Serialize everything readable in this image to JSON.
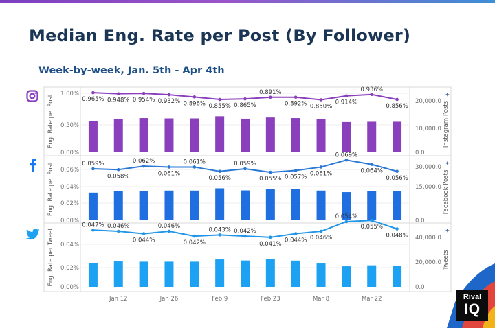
{
  "title": "Median Eng. Rate per Post (By Follower)",
  "subtitle": "Week-by-week, Jan. 5th - Apr 4th",
  "logo": {
    "line1": "Rival",
    "line2": "IQ"
  },
  "icons": {
    "instagram": "instagram-icon",
    "facebook": "facebook-icon",
    "twitter": "twitter-icon"
  },
  "colors": {
    "instagram_bar": "#8a3fbc",
    "instagram_line": "#8a3fbc",
    "facebook_bar": "#1f6fe0",
    "facebook_line": "#2a78d6",
    "twitter_bar": "#1da1f2",
    "twitter_line": "#2196e8",
    "facebook_icon": "#1877f2",
    "twitter_icon": "#1da1f2",
    "instagram_icon": "#8a3fbc",
    "title": "#1b3554",
    "subtitle": "#1d4f86"
  },
  "chart_data": {
    "type": "bar",
    "x_tick_labels": [
      "Jan 12",
      "Jan 26",
      "Feb 9",
      "Feb 23",
      "Mar 8",
      "Mar 22"
    ],
    "grid": true,
    "panels": [
      {
        "platform": "Instagram",
        "ylabel": "Eng. Rate per Post",
        "y2label": "Instagram Posts",
        "y_ticks": [
          "0.00%",
          "0.50%",
          "1.00%"
        ],
        "y2_ticks": [
          "0.0",
          "10,000.0",
          "20,000.0"
        ],
        "ylim": [
          0,
          1.0
        ],
        "y2lim": [
          0,
          20000
        ],
        "posts": [
          10200,
          10700,
          11100,
          11000,
          11000,
          11700,
          10900,
          11300,
          11100,
          10700,
          9800,
          9900,
          9900
        ],
        "rate": [
          0.965,
          0.948,
          0.954,
          0.932,
          0.896,
          0.855,
          0.865,
          0.891,
          0.892,
          0.85,
          0.914,
          0.936,
          0.856
        ],
        "labels": [
          "0.965%",
          "0.948%",
          "0.954%",
          "0.932%",
          "0.896%",
          "0.855%",
          "0.865%",
          "0.891%",
          "0.892%",
          "0.850%",
          "0.914%",
          "0.936%",
          "0.856%"
        ],
        "label_above": [
          false,
          false,
          false,
          false,
          false,
          false,
          false,
          true,
          false,
          false,
          false,
          true,
          false
        ]
      },
      {
        "platform": "Facebook",
        "ylabel": "Eng. Rate per Post",
        "y2label": "Facebook Posts",
        "y_ticks": [
          "0.00%",
          "0.02%",
          "0.04%",
          "0.06%"
        ],
        "y2_ticks": [
          "0.00",
          "15000.0",
          "30,000.0"
        ],
        "y2_ticks_all": [
          "0.0",
          "15,000.0",
          "30,000.0"
        ],
        "y2_tick_mid": "15,000.0",
        "y2_tick_top": "30,000.0",
        "y2_tick_bottom": "0.0",
        "y_tick_extra": "0.02%",
        "ylim": [
          0,
          0.07
        ],
        "y2lim": [
          0,
          35000
        ],
        "posts": [
          15800,
          16800,
          16700,
          17000,
          17000,
          18300,
          17100,
          18000,
          18000,
          17000,
          16100,
          16600,
          16900
        ],
        "rate": [
          0.059,
          0.058,
          0.062,
          0.061,
          0.061,
          0.056,
          0.059,
          0.055,
          0.057,
          0.061,
          0.069,
          0.064,
          0.056
        ],
        "labels": [
          "0.059%",
          "0.058%",
          "0.062%",
          "0.061%",
          "0.061%",
          "0.056%",
          "0.059%",
          "0.055%",
          "0.057%",
          "0.061%",
          "0.069%",
          "0.064%",
          "0.056%"
        ],
        "label_above": [
          true,
          false,
          true,
          false,
          true,
          false,
          true,
          false,
          false,
          false,
          true,
          false,
          false
        ]
      },
      {
        "platform": "Twitter",
        "ylabel": "Eng. Rate per Tweet",
        "y2label": "Tweets",
        "y_ticks": [
          "0.00%",
          "0.02%",
          "0.04%"
        ],
        "y2_ticks": [
          "0.0",
          "20,000.0",
          "40,000.0"
        ],
        "ylim": [
          0,
          0.05
        ],
        "y2lim": [
          0,
          50000
        ],
        "posts": [
          19500,
          21000,
          20800,
          20800,
          20800,
          22700,
          21800,
          22900,
          21700,
          19300,
          17000,
          17800,
          17600
        ],
        "rate": [
          0.047,
          0.046,
          0.044,
          0.046,
          0.042,
          0.043,
          0.042,
          0.041,
          0.044,
          0.046,
          0.054,
          0.055,
          0.048
        ],
        "labels": [
          "0.047%",
          "0.046%",
          "0.044%",
          "0.046%",
          "0.042%",
          "0.043%",
          "0.042%",
          "0.041%",
          "0.044%",
          "0.046%",
          "0.054%",
          "0.055%",
          "0.048%"
        ],
        "label_above": [
          true,
          true,
          false,
          true,
          false,
          true,
          true,
          false,
          false,
          false,
          true,
          false,
          false
        ]
      }
    ]
  }
}
